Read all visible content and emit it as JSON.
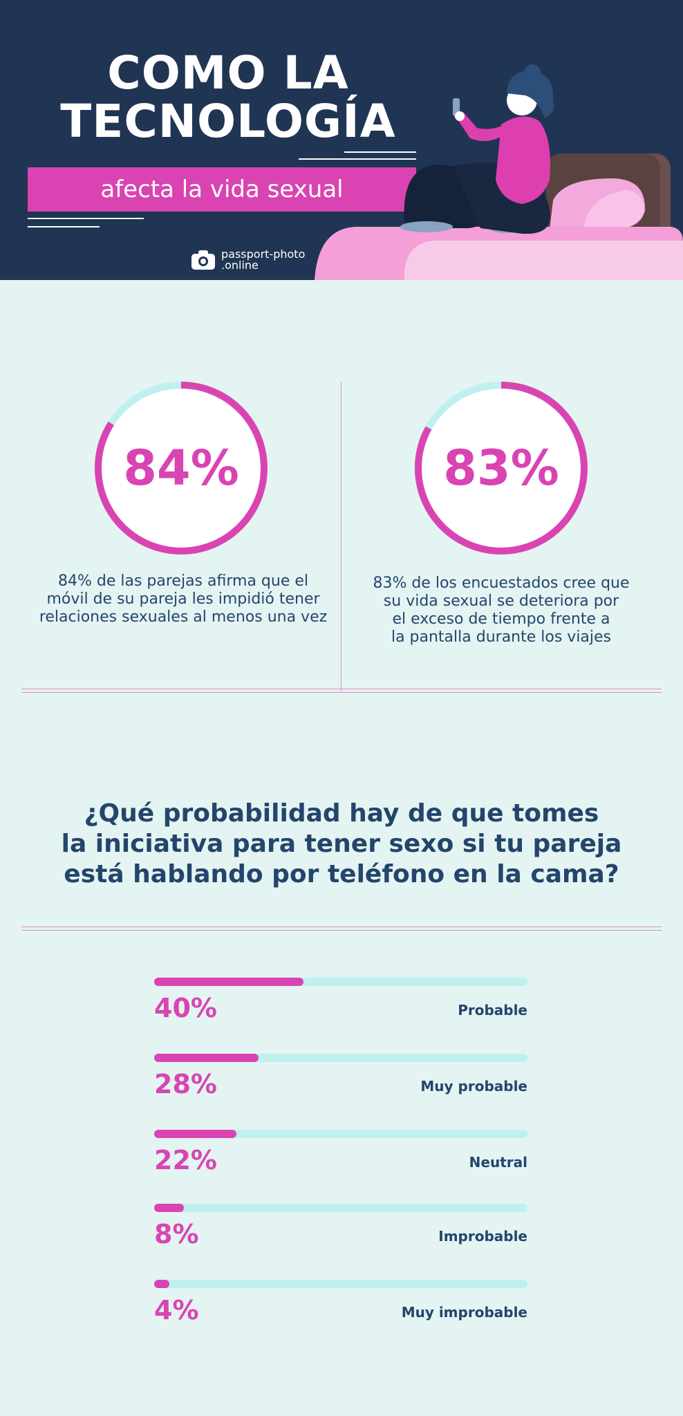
{
  "header": {
    "title_line1": "COMO LA",
    "title_line2": "TECNOLOGÍA",
    "subtitle": "afecta la vida sexual",
    "brand_line1": "passport-photo",
    "brand_line2": ".online"
  },
  "stats": [
    {
      "value": "84%",
      "percent": 84,
      "desc_lines": [
        "84% de las parejas afirma que el",
        "móvil de su pareja les impidió tener",
        "relaciones sexuales al menos una vez"
      ]
    },
    {
      "value": "83%",
      "percent": 83,
      "desc_lines": [
        "83% de los encuestados cree que",
        "su vida sexual se deteriora por",
        "el exceso de tiempo frente a",
        "la pantalla durante los viajes"
      ]
    }
  ],
  "question": {
    "lines": [
      "¿Qué probabilidad hay de que tomes",
      "la iniciativa para tener sexo si tu pareja",
      "está hablando por teléfono en la cama?"
    ]
  },
  "chart_data": {
    "type": "bar",
    "orientation": "horizontal",
    "categories": [
      "Probable",
      "Muy probable",
      "Neutral",
      "Improbable",
      "Muy improbable"
    ],
    "values": [
      40,
      28,
      22,
      8,
      4
    ],
    "value_labels": [
      "40%",
      "28%",
      "22%",
      "8%",
      "4%"
    ],
    "xlim": [
      0,
      100
    ]
  },
  "colors": {
    "navy": "#1f3553",
    "pink": "#d944b2",
    "mint": "#e3f4f2",
    "track": "#bff0ed",
    "text": "#24456b"
  }
}
